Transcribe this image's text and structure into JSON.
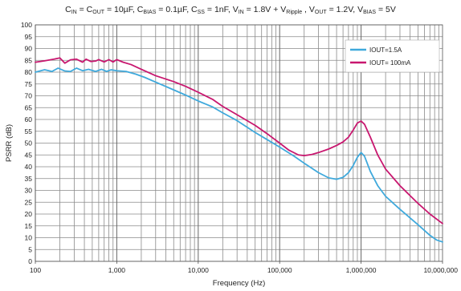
{
  "chart_data": {
    "type": "line",
    "title": {
      "parts": [
        {
          "t": "C",
          "s": ""
        },
        {
          "t": "IN",
          "s": "sub"
        },
        {
          "t": " = C",
          "s": ""
        },
        {
          "t": "OUT",
          "s": "sub"
        },
        {
          "t": " = 10µF, C",
          "s": ""
        },
        {
          "t": "BIAS",
          "s": "sub"
        },
        {
          "t": " = 0.1µF, C",
          "s": ""
        },
        {
          "t": "SS",
          "s": "sub"
        },
        {
          "t": " = 1nF, V",
          "s": ""
        },
        {
          "t": "IN",
          "s": "sub"
        },
        {
          "t": " = 1.8V + V",
          "s": ""
        },
        {
          "t": "Ripple",
          "s": "sub"
        },
        {
          "t": " , V",
          "s": ""
        },
        {
          "t": "OUT",
          "s": "sub"
        },
        {
          "t": " = 1.2V, V",
          "s": ""
        },
        {
          "t": "BIAS",
          "s": "sub"
        },
        {
          "t": " = 5V",
          "s": ""
        }
      ]
    },
    "xlabel": "Frequency (Hz)",
    "ylabel": "PSRR (dB)",
    "xscale": "log",
    "xlim": [
      100,
      10000000
    ],
    "ylim": [
      0,
      100
    ],
    "x_ticks": [
      100,
      1000,
      10000,
      100000,
      1000000,
      10000000
    ],
    "x_tick_labels": [
      "100",
      "1,000",
      "10,000",
      "100,000",
      "1,000,000",
      "10,000,000"
    ],
    "y_ticks": [
      0,
      5,
      10,
      15,
      20,
      25,
      30,
      35,
      40,
      45,
      50,
      55,
      60,
      65,
      70,
      75,
      80,
      85,
      90,
      95,
      100
    ],
    "y_tick_labels": [
      "0",
      "5",
      "10",
      "15",
      "20",
      "25",
      "30",
      "35",
      "40",
      "45",
      "50",
      "55",
      "60",
      "65",
      "70",
      "75",
      "80",
      "85",
      "90",
      "95",
      "100"
    ],
    "grid": true,
    "legend_position": "top-right",
    "series": [
      {
        "name": "IOUT=1.5A",
        "color": "#3fa9dc",
        "points": [
          [
            100,
            80
          ],
          [
            130,
            81
          ],
          [
            160,
            80.3
          ],
          [
            190,
            81.7
          ],
          [
            230,
            80.5
          ],
          [
            270,
            80.3
          ],
          [
            320,
            81.7
          ],
          [
            380,
            80.6
          ],
          [
            450,
            81.2
          ],
          [
            550,
            80.3
          ],
          [
            650,
            81.2
          ],
          [
            750,
            80.3
          ],
          [
            850,
            81
          ],
          [
            1000,
            80.6
          ],
          [
            1300,
            80.3
          ],
          [
            1700,
            79.2
          ],
          [
            2200,
            77.8
          ],
          [
            3000,
            75.8
          ],
          [
            5000,
            72.5
          ],
          [
            7000,
            70.3
          ],
          [
            10000,
            67.8
          ],
          [
            15000,
            65.3
          ],
          [
            20000,
            62.8
          ],
          [
            30000,
            59.5
          ],
          [
            50000,
            54.5
          ],
          [
            70000,
            51.5
          ],
          [
            100000,
            48.3
          ],
          [
            150000,
            44.5
          ],
          [
            200000,
            41.5
          ],
          [
            300000,
            37.5
          ],
          [
            400000,
            35.3
          ],
          [
            500000,
            34.7
          ],
          [
            600000,
            35.5
          ],
          [
            700000,
            37.5
          ],
          [
            800000,
            40.5
          ],
          [
            900000,
            44
          ],
          [
            1000000,
            46
          ],
          [
            1100000,
            44.5
          ],
          [
            1300000,
            38
          ],
          [
            1600000,
            32
          ],
          [
            2000000,
            27.5
          ],
          [
            3000000,
            22
          ],
          [
            5000000,
            15.5
          ],
          [
            7000000,
            11
          ],
          [
            8500000,
            9
          ],
          [
            10000000,
            8.2
          ]
        ]
      },
      {
        "name": "IOUT= 100mA",
        "color": "#c8176f",
        "points": [
          [
            100,
            84.2
          ],
          [
            130,
            84.8
          ],
          [
            170,
            85.5
          ],
          [
            200,
            86
          ],
          [
            230,
            83.8
          ],
          [
            270,
            85.2
          ],
          [
            320,
            85.5
          ],
          [
            380,
            84.2
          ],
          [
            420,
            85.5
          ],
          [
            480,
            84.5
          ],
          [
            550,
            84.7
          ],
          [
            600,
            85.3
          ],
          [
            700,
            84.3
          ],
          [
            800,
            85.3
          ],
          [
            900,
            84.3
          ],
          [
            1000,
            85.3
          ],
          [
            1200,
            84.2
          ],
          [
            1500,
            83.2
          ],
          [
            2000,
            81.2
          ],
          [
            3000,
            78.5
          ],
          [
            5000,
            76
          ],
          [
            7000,
            74
          ],
          [
            10000,
            71.5
          ],
          [
            15000,
            68.5
          ],
          [
            20000,
            65.5
          ],
          [
            30000,
            62
          ],
          [
            50000,
            57.5
          ],
          [
            70000,
            54
          ],
          [
            100000,
            50
          ],
          [
            130000,
            47
          ],
          [
            170000,
            45
          ],
          [
            200000,
            44.7
          ],
          [
            250000,
            45.2
          ],
          [
            300000,
            46
          ],
          [
            400000,
            47.5
          ],
          [
            500000,
            49
          ],
          [
            600000,
            50.5
          ],
          [
            700000,
            52.5
          ],
          [
            800000,
            55.5
          ],
          [
            900000,
            58.5
          ],
          [
            1000000,
            59.3
          ],
          [
            1100000,
            58
          ],
          [
            1300000,
            52.5
          ],
          [
            1600000,
            45
          ],
          [
            2000000,
            39
          ],
          [
            3000000,
            32
          ],
          [
            5000000,
            24.5
          ],
          [
            7000000,
            20
          ],
          [
            10000000,
            16
          ]
        ]
      }
    ]
  }
}
